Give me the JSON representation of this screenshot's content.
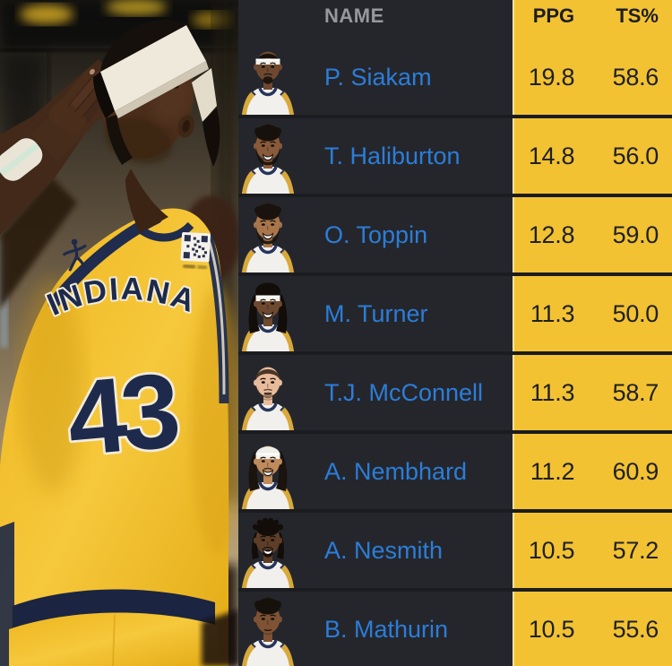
{
  "photo": {
    "team_name": "INDIANA",
    "jersey_number": "43"
  },
  "table": {
    "columns": [
      "NAME",
      "PPG",
      "TS%"
    ],
    "rows": [
      {
        "name": "P. Siakam",
        "ppg": "19.8",
        "ts": "58.6",
        "avatar": {
          "skin": "#6E4930",
          "hair": "short",
          "hairColor": "#17110C",
          "headband": true,
          "facial": "goatee",
          "smile": false
        }
      },
      {
        "name": "T. Haliburton",
        "ppg": "14.8",
        "ts": "56.0",
        "avatar": {
          "skin": "#8A5B3B",
          "hair": "curly",
          "hairColor": "#17110C",
          "headband": false,
          "facial": "beard",
          "smile": true
        }
      },
      {
        "name": "O. Toppin",
        "ppg": "12.8",
        "ts": "59.0",
        "avatar": {
          "skin": "#A9764C",
          "hair": "curly",
          "hairColor": "#1A130D",
          "headband": false,
          "facial": "beard",
          "smile": true
        }
      },
      {
        "name": "M. Turner",
        "ppg": "11.3",
        "ts": "50.0",
        "avatar": {
          "skin": "#6E4930",
          "hair": "locs",
          "hairColor": "#120D09",
          "headband": true,
          "facial": "none",
          "smile": true
        }
      },
      {
        "name": "T.J. McConnell",
        "ppg": "11.3",
        "ts": "58.7",
        "avatar": {
          "skin": "#E8BB9B",
          "hair": "short",
          "hairColor": "#4A3526",
          "headband": false,
          "facial": "stubble",
          "smile": false
        }
      },
      {
        "name": "A. Nembhard",
        "ppg": "11.2",
        "ts": "60.9",
        "avatar": {
          "skin": "#C08B5C",
          "hair": "durag",
          "hairColor": "#1A130E",
          "headband": true,
          "facial": "mustache",
          "smile": true
        }
      },
      {
        "name": "A. Nesmith",
        "ppg": "10.5",
        "ts": "57.2",
        "avatar": {
          "skin": "#5E3E28",
          "hair": "twists",
          "hairColor": "#120D09",
          "headband": false,
          "facial": "goatee",
          "smile": true
        }
      },
      {
        "name": "B. Mathurin",
        "ppg": "10.5",
        "ts": "55.6",
        "avatar": {
          "skin": "#7E5234",
          "hair": "curly",
          "hairColor": "#17110C",
          "headband": false,
          "facial": "none",
          "smile": false
        }
      }
    ]
  },
  "colors": {
    "accent_yellow": "#F2C233",
    "link_blue": "#2B7DD9",
    "row_dark": "#25262B",
    "gap_dark": "#1B1C20",
    "header_gray": "#96989D",
    "stat_text": "#202020",
    "jersey_navy": "#1E2A4B",
    "jersey_gold": "#F1BE25"
  }
}
